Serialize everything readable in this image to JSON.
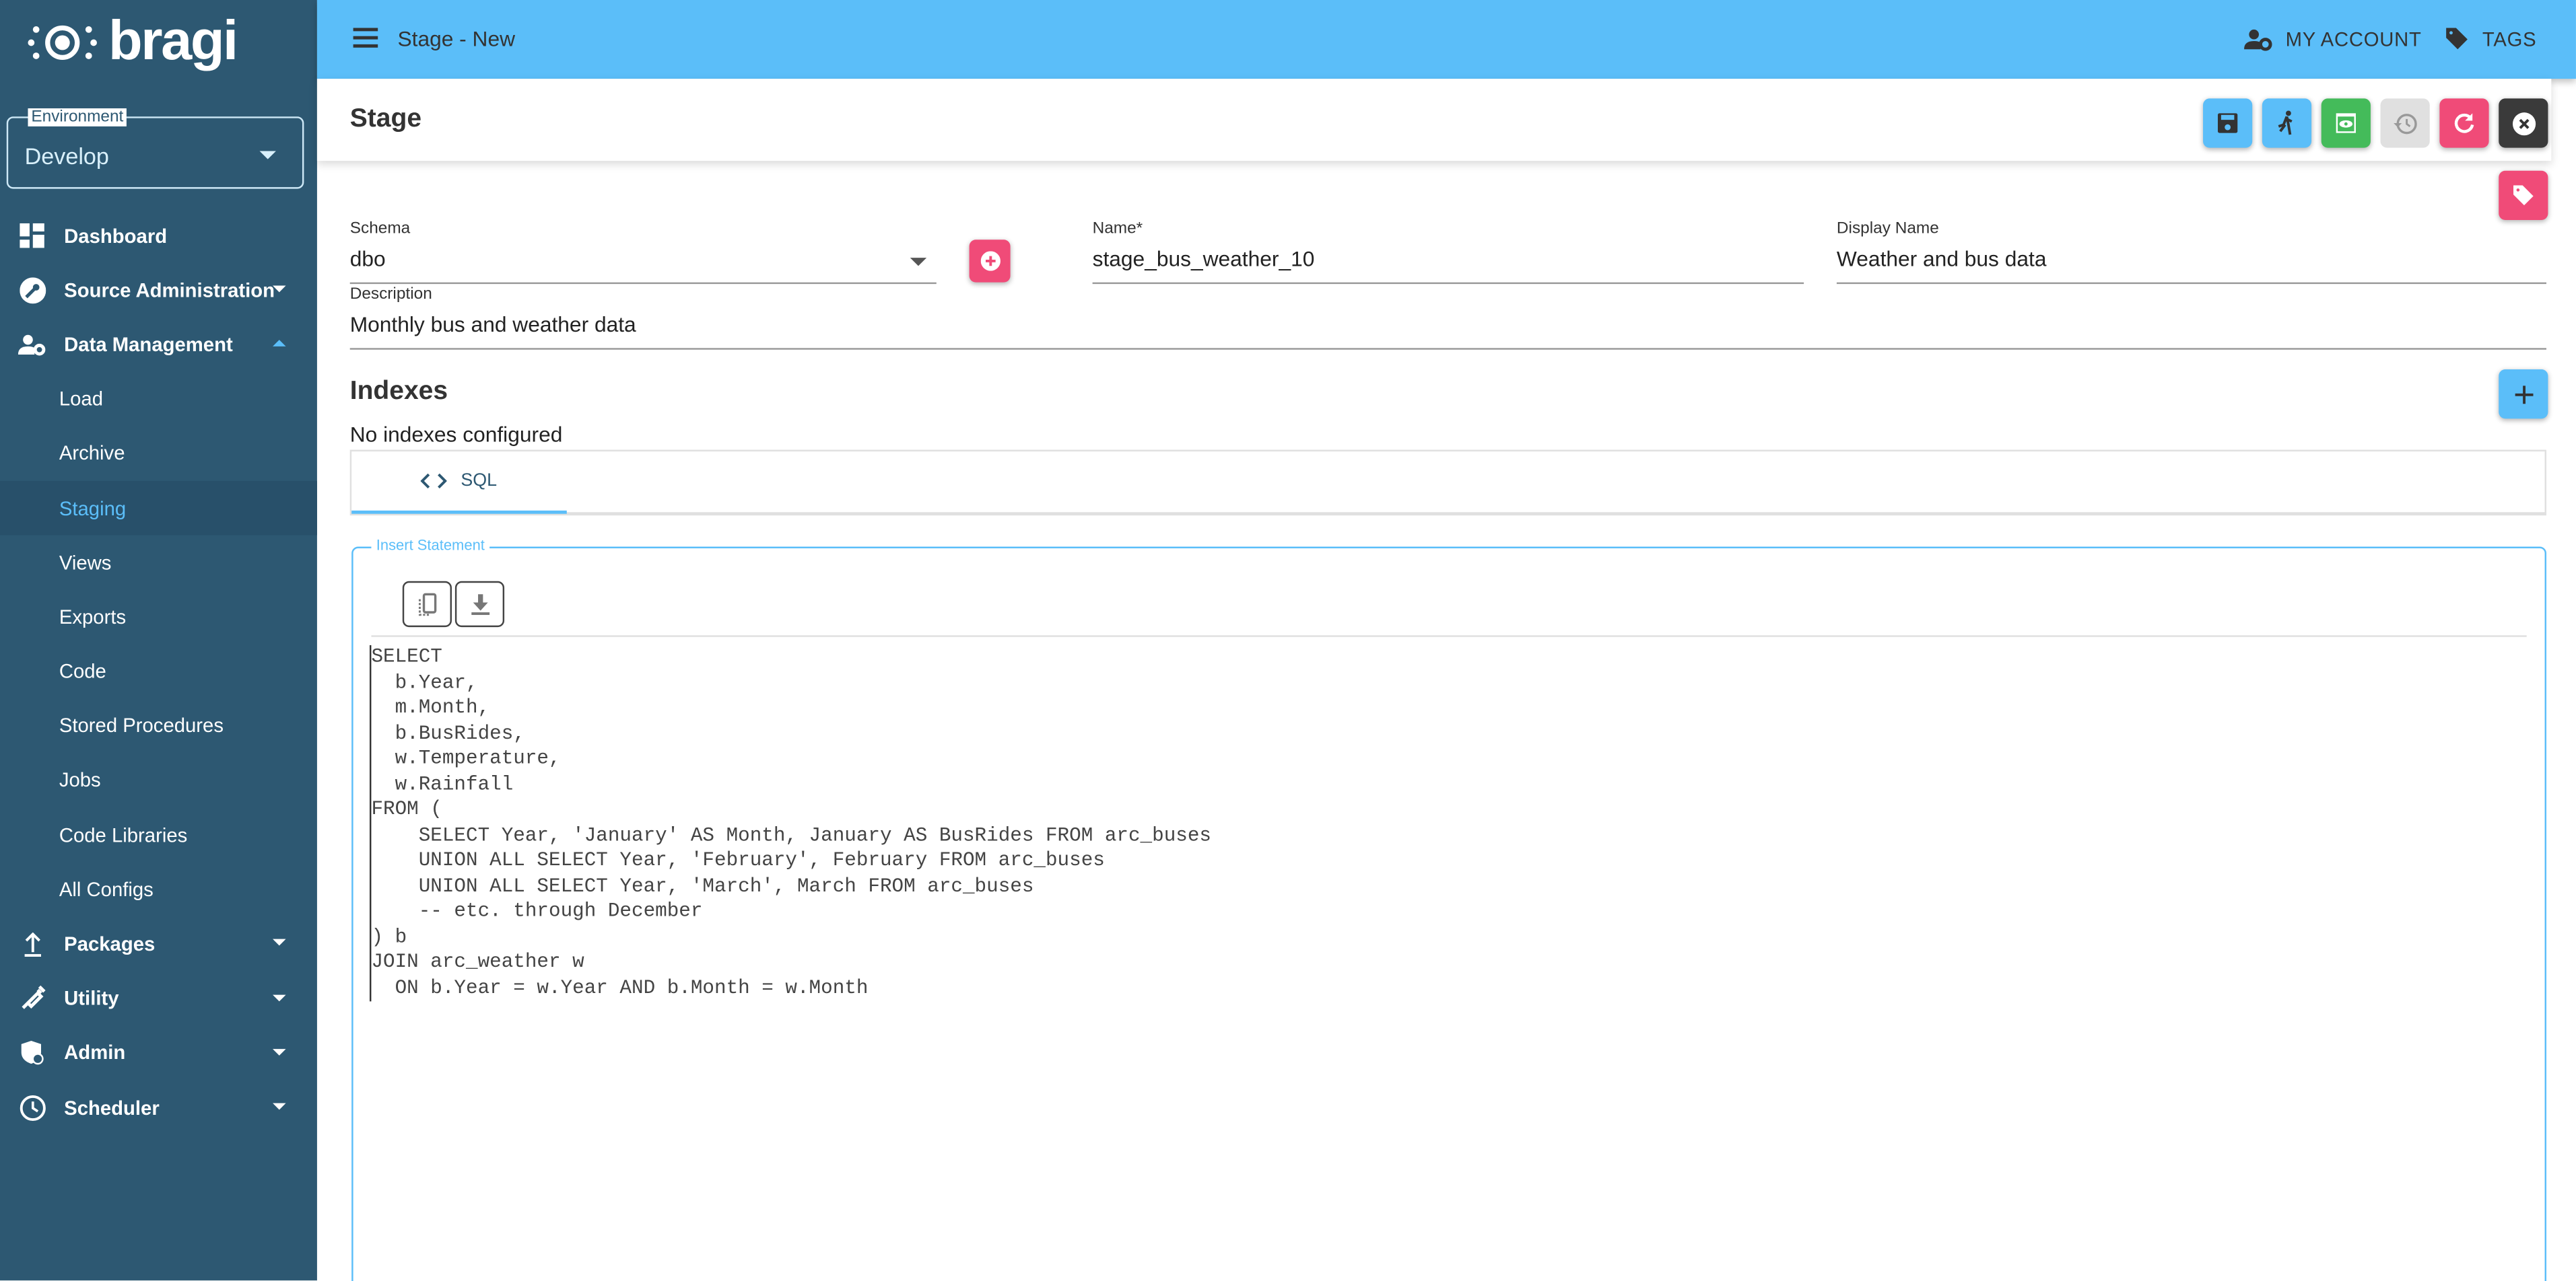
{
  "brand": {
    "name": "bragi"
  },
  "environment": {
    "label": "Environment",
    "value": "Develop"
  },
  "sidebar": {
    "items": [
      {
        "label": "Dashboard",
        "icon": "dashboard-icon",
        "level": "top"
      },
      {
        "label": "Source Administration",
        "icon": "wrench-icon",
        "level": "top",
        "caret": "down"
      },
      {
        "label": "Data Management",
        "icon": "users-gear-icon",
        "level": "top",
        "caret": "up"
      },
      {
        "label": "Load",
        "level": "sub"
      },
      {
        "label": "Archive",
        "level": "sub"
      },
      {
        "label": "Staging",
        "level": "sub",
        "active": true
      },
      {
        "label": "Views",
        "level": "sub"
      },
      {
        "label": "Exports",
        "level": "sub"
      },
      {
        "label": "Code",
        "level": "sub"
      },
      {
        "label": "Stored Procedures",
        "level": "sub"
      },
      {
        "label": "Jobs",
        "level": "sub"
      },
      {
        "label": "Code Libraries",
        "level": "sub"
      },
      {
        "label": "All Configs",
        "level": "sub"
      },
      {
        "label": "Packages",
        "icon": "upload-icon",
        "level": "top",
        "caret": "down"
      },
      {
        "label": "Utility",
        "icon": "syringe-icon",
        "level": "top",
        "caret": "down"
      },
      {
        "label": "Admin",
        "icon": "shield-icon",
        "level": "top",
        "caret": "down"
      },
      {
        "label": "Scheduler",
        "icon": "clock-icon",
        "level": "top",
        "caret": "down"
      }
    ]
  },
  "header": {
    "title": "Stage - New",
    "my_account": "MY ACCOUNT",
    "tags": "TAGS"
  },
  "card": {
    "title": "Stage"
  },
  "colors": {
    "accent": "#5bbef9",
    "sidebar": "#2d5872",
    "pink": "#f04b78",
    "green": "#44bb5a",
    "dark": "#3a3a3a"
  },
  "form": {
    "schema": {
      "label": "Schema",
      "value": "dbo"
    },
    "name": {
      "label": "Name*",
      "value": "stage_bus_weather_10"
    },
    "display_name": {
      "label": "Display Name",
      "value": "Weather and bus data"
    },
    "description": {
      "label": "Description",
      "value": "Monthly bus and weather data"
    }
  },
  "indexes": {
    "title": "Indexes",
    "empty": "No indexes configured"
  },
  "tabs": [
    {
      "label": "SQL",
      "icon": "code-icon"
    }
  ],
  "insert": {
    "label": "Insert Statement",
    "code": "SELECT\n  b.Year,\n  m.Month,\n  b.BusRides,\n  w.Temperature,\n  w.Rainfall\nFROM (\n    SELECT Year, 'January' AS Month, January AS BusRides FROM arc_buses\n    UNION ALL SELECT Year, 'February', February FROM arc_buses\n    UNION ALL SELECT Year, 'March', March FROM arc_buses\n    -- etc. through December\n) b\nJOIN arc_weather w\n  ON b.Year = w.Year AND b.Month = w.Month"
  }
}
